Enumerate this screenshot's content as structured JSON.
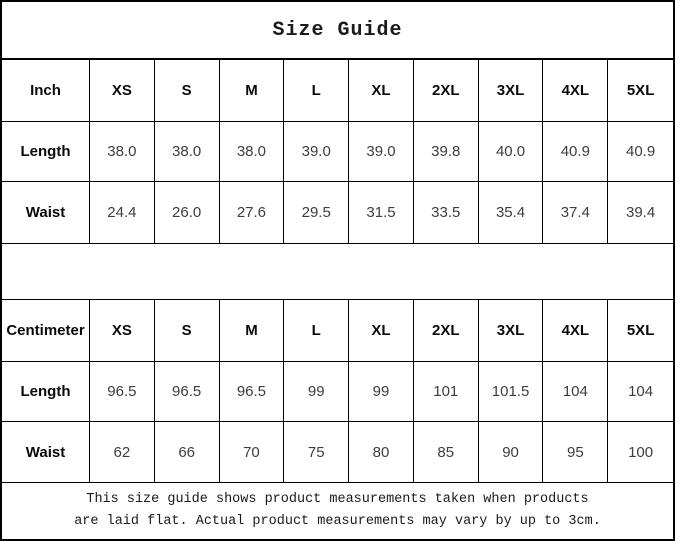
{
  "title": "Size Guide",
  "inch_table": {
    "unit_label": "Inch",
    "sizes": [
      "XS",
      "S",
      "M",
      "L",
      "XL",
      "2XL",
      "3XL",
      "4XL",
      "5XL"
    ],
    "rows": [
      {
        "label": "Length",
        "values": [
          "38.0",
          "38.0",
          "38.0",
          "39.0",
          "39.0",
          "39.8",
          "40.0",
          "40.9",
          "40.9"
        ]
      },
      {
        "label": "Waist",
        "values": [
          "24.4",
          "26.0",
          "27.6",
          "29.5",
          "31.5",
          "33.5",
          "35.4",
          "37.4",
          "39.4"
        ]
      }
    ]
  },
  "cm_table": {
    "unit_label": "Centimeter",
    "sizes": [
      "XS",
      "S",
      "M",
      "L",
      "XL",
      "2XL",
      "3XL",
      "4XL",
      "5XL"
    ],
    "rows": [
      {
        "label": "Length",
        "values": [
          "96.5",
          "96.5",
          "96.5",
          "99",
          "99",
          "101",
          "101.5",
          "104",
          "104"
        ]
      },
      {
        "label": "Waist",
        "values": [
          "62",
          "66",
          "70",
          "75",
          "80",
          "85",
          "90",
          "95",
          "100"
        ]
      }
    ]
  },
  "footer": {
    "line1": "This size guide shows product measurements taken when products",
    "line2": "are laid flat. Actual product measurements may vary by up to 3cm."
  }
}
